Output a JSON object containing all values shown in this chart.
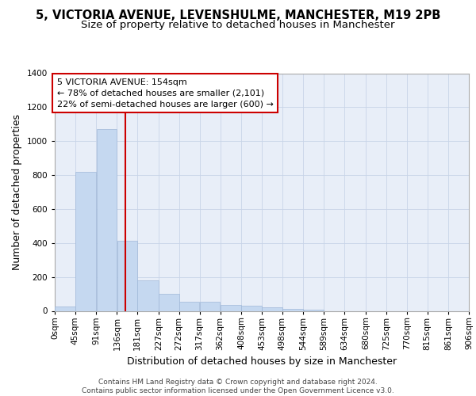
{
  "title_line1": "5, VICTORIA AVENUE, LEVENSHULME, MANCHESTER, M19 2PB",
  "title_line2": "Size of property relative to detached houses in Manchester",
  "xlabel": "Distribution of detached houses by size in Manchester",
  "ylabel": "Number of detached properties",
  "bin_edges": [
    0,
    45,
    91,
    136,
    181,
    227,
    272,
    317,
    362,
    408,
    453,
    498,
    544,
    589,
    634,
    680,
    725,
    770,
    815,
    861,
    906
  ],
  "bar_heights": [
    25,
    820,
    1070,
    415,
    180,
    100,
    55,
    55,
    35,
    30,
    20,
    10,
    5,
    0,
    0,
    0,
    0,
    0,
    0,
    0
  ],
  "bar_color": "#c5d8f0",
  "bar_edge_color": "#a0b8d8",
  "bg_color": "#e8eef8",
  "grid_color": "#c8d4e8",
  "property_size": 154,
  "vline_color": "#cc0000",
  "annotation_text": "5 VICTORIA AVENUE: 154sqm\n← 78% of detached houses are smaller (2,101)\n22% of semi-detached houses are larger (600) →",
  "annotation_box_facecolor": "#ffffff",
  "annotation_box_edgecolor": "#cc0000",
  "ylim": [
    0,
    1400
  ],
  "yticks": [
    0,
    200,
    400,
    600,
    800,
    1000,
    1200,
    1400
  ],
  "tick_labels": [
    "0sqm",
    "45sqm",
    "91sqm",
    "136sqm",
    "181sqm",
    "227sqm",
    "272sqm",
    "317sqm",
    "362sqm",
    "408sqm",
    "453sqm",
    "498sqm",
    "544sqm",
    "589sqm",
    "634sqm",
    "680sqm",
    "725sqm",
    "770sqm",
    "815sqm",
    "861sqm",
    "906sqm"
  ],
  "footer_text": "Contains HM Land Registry data © Crown copyright and database right 2024.\nContains public sector information licensed under the Open Government Licence v3.0.",
  "title1_fontsize": 10.5,
  "title2_fontsize": 9.5,
  "axis_label_fontsize": 9,
  "tick_fontsize": 7.5,
  "footer_fontsize": 6.5,
  "annot_fontsize": 8
}
